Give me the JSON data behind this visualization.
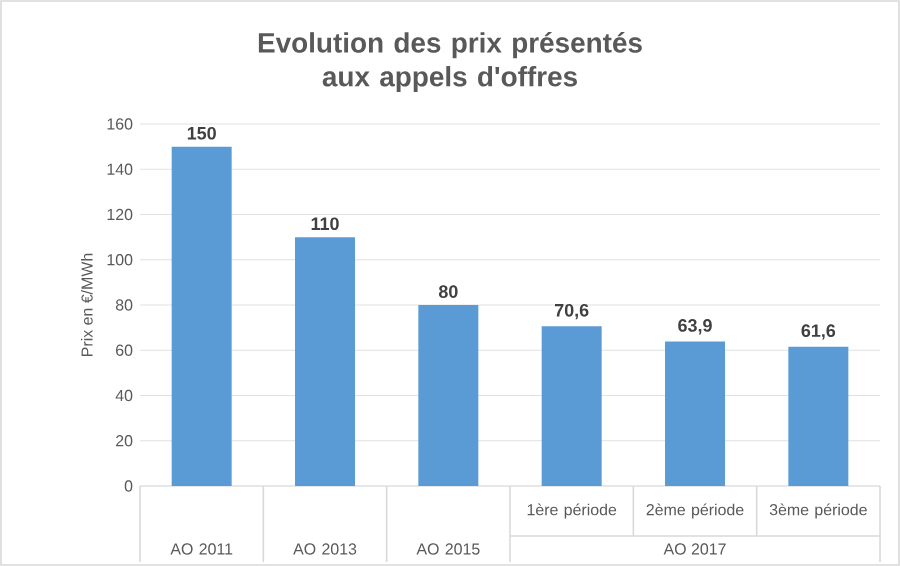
{
  "chart_data": {
    "type": "bar",
    "title": "Evolution des prix présentés aux appels d'offres",
    "ylabel": "Prix en €/MWh",
    "categories": [
      "AO 2011",
      "AO 2013",
      "AO 2015",
      "1ère période",
      "2ème période",
      "3ème période"
    ],
    "values": [
      150,
      110,
      80,
      70.6,
      63.9,
      61.6
    ],
    "value_labels": [
      "150",
      "110",
      "80",
      "70,6",
      "63,9",
      "61,6"
    ],
    "color": "#5b9bd5",
    "ylim": [
      0,
      160
    ],
    "yticks": [
      0,
      20,
      40,
      60,
      80,
      100,
      120,
      140,
      160
    ],
    "grid": "y",
    "annotations": [
      "AO 2017"
    ]
  }
}
